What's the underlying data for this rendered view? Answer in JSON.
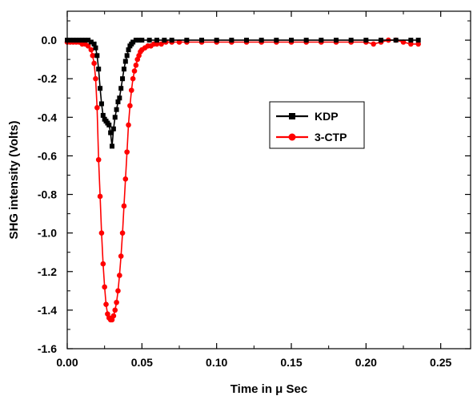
{
  "chart_data": {
    "type": "line",
    "xlabel": "Time in μ Sec",
    "ylabel": "SHG intensity (Volts)",
    "xlim": [
      0.0,
      0.27
    ],
    "ylim": [
      -1.6,
      0.15
    ],
    "x_ticks": [
      "0.00",
      "0.05",
      "0.10",
      "0.15",
      "0.20",
      "0.25"
    ],
    "y_ticks": [
      "0.0",
      "-0.2",
      "-0.4",
      "-0.6",
      "-0.8",
      "-1.0",
      "-1.2",
      "-1.4",
      "-1.6"
    ],
    "grid": false,
    "legend_position": "center-right",
    "series": [
      {
        "name": "KDP",
        "color": "#000000",
        "marker": "square",
        "x": [
          0.0,
          0.002,
          0.004,
          0.006,
          0.008,
          0.01,
          0.012,
          0.014,
          0.016,
          0.018,
          0.019,
          0.02,
          0.021,
          0.022,
          0.023,
          0.024,
          0.025,
          0.026,
          0.027,
          0.028,
          0.029,
          0.03,
          0.031,
          0.032,
          0.033,
          0.034,
          0.035,
          0.036,
          0.037,
          0.038,
          0.039,
          0.04,
          0.041,
          0.042,
          0.043,
          0.044,
          0.046,
          0.048,
          0.05,
          0.055,
          0.06,
          0.065,
          0.07,
          0.08,
          0.09,
          0.1,
          0.11,
          0.12,
          0.13,
          0.14,
          0.15,
          0.16,
          0.17,
          0.18,
          0.19,
          0.2,
          0.21,
          0.22,
          0.23,
          0.235
        ],
        "y": [
          0.0,
          0.0,
          0.0,
          0.0,
          0.0,
          0.0,
          0.0,
          0.0,
          -0.01,
          -0.02,
          -0.04,
          -0.08,
          -0.15,
          -0.25,
          -0.33,
          -0.39,
          -0.41,
          -0.42,
          -0.43,
          -0.44,
          -0.48,
          -0.55,
          -0.46,
          -0.4,
          -0.36,
          -0.32,
          -0.3,
          -0.25,
          -0.2,
          -0.15,
          -0.11,
          -0.08,
          -0.05,
          -0.03,
          -0.02,
          -0.01,
          0.0,
          0.0,
          0.0,
          0.0,
          0.0,
          0.0,
          0.0,
          0.0,
          0.0,
          0.0,
          0.0,
          0.0,
          0.0,
          0.0,
          0.0,
          0.0,
          0.0,
          0.0,
          0.0,
          0.0,
          0.0,
          0.0,
          0.0,
          0.0
        ]
      },
      {
        "name": "3-CTP",
        "color": "#ff0000",
        "marker": "circle",
        "x": [
          0.0,
          0.002,
          0.004,
          0.006,
          0.008,
          0.01,
          0.012,
          0.014,
          0.016,
          0.017,
          0.018,
          0.019,
          0.02,
          0.021,
          0.022,
          0.023,
          0.024,
          0.025,
          0.026,
          0.027,
          0.028,
          0.029,
          0.03,
          0.031,
          0.032,
          0.033,
          0.034,
          0.035,
          0.036,
          0.037,
          0.038,
          0.039,
          0.04,
          0.041,
          0.042,
          0.043,
          0.044,
          0.045,
          0.046,
          0.047,
          0.048,
          0.049,
          0.05,
          0.052,
          0.054,
          0.056,
          0.058,
          0.06,
          0.063,
          0.066,
          0.07,
          0.075,
          0.08,
          0.09,
          0.1,
          0.11,
          0.12,
          0.13,
          0.14,
          0.15,
          0.16,
          0.17,
          0.18,
          0.19,
          0.2,
          0.205,
          0.21,
          0.215,
          0.22,
          0.225,
          0.23,
          0.235
        ],
        "y": [
          -0.01,
          -0.01,
          -0.01,
          -0.01,
          -0.01,
          -0.02,
          -0.02,
          -0.03,
          -0.05,
          -0.08,
          -0.12,
          -0.2,
          -0.35,
          -0.62,
          -0.81,
          -1.0,
          -1.16,
          -1.28,
          -1.37,
          -1.42,
          -1.44,
          -1.45,
          -1.45,
          -1.43,
          -1.4,
          -1.36,
          -1.3,
          -1.22,
          -1.12,
          -1.0,
          -0.86,
          -0.72,
          -0.58,
          -0.44,
          -0.34,
          -0.26,
          -0.2,
          -0.16,
          -0.13,
          -0.1,
          -0.08,
          -0.06,
          -0.05,
          -0.04,
          -0.03,
          -0.03,
          -0.02,
          -0.02,
          -0.02,
          -0.01,
          -0.01,
          -0.01,
          -0.01,
          -0.01,
          -0.01,
          -0.01,
          -0.01,
          -0.01,
          -0.01,
          -0.01,
          -0.01,
          -0.01,
          -0.01,
          -0.01,
          -0.01,
          -0.02,
          -0.01,
          0.0,
          0.0,
          -0.01,
          -0.02,
          -0.02
        ]
      }
    ]
  }
}
